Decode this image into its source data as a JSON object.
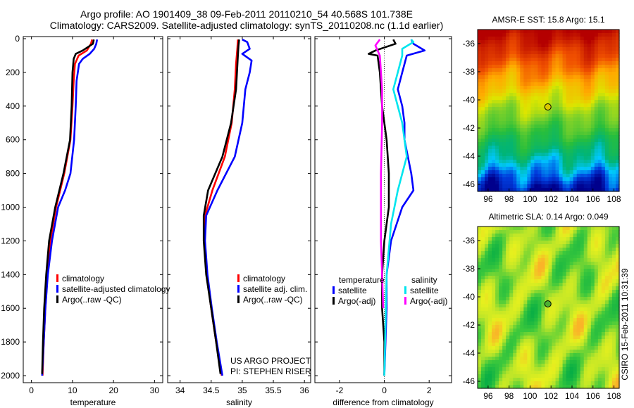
{
  "header": {
    "line1": "Argo profile: AO 1901409_38 09-Feb-2011 20110210_54 40.568S 101.738E",
    "line2": "Climatology: CARS2009. Satellite-adjusted climatology: synTS_20110208.nc (1.1d earlier)"
  },
  "colors": {
    "climatology": "#ff0000",
    "satellite": "#0000ff",
    "argo": "#000000",
    "salinity_satellite": "#00e5ee",
    "salinity_argo": "#ff00ff"
  },
  "chart_data": [
    {
      "type": "line",
      "xlabel": "temperature",
      "xlim": [
        -2,
        32
      ],
      "xticks": [
        0,
        10,
        20,
        30
      ],
      "ylim": [
        2050,
        0
      ],
      "yticks": [
        0,
        200,
        400,
        600,
        800,
        1000,
        1200,
        1400,
        1600,
        1800,
        2000
      ],
      "legend": [
        "climatology",
        "satellite-adjusted climatology",
        "Argo(..raw -QC)"
      ],
      "series": [
        {
          "name": "climatology",
          "color": "#ff0000",
          "points": [
            [
              14.8,
              5
            ],
            [
              14.5,
              30
            ],
            [
              13.5,
              70
            ],
            [
              11.5,
              100
            ],
            [
              10.6,
              150
            ],
            [
              10.3,
              250
            ],
            [
              10.0,
              400
            ],
            [
              9.5,
              600
            ],
            [
              8.0,
              800
            ],
            [
              6.0,
              1000
            ],
            [
              4.6,
              1200
            ],
            [
              3.9,
              1400
            ],
            [
              3.4,
              1600
            ],
            [
              3.0,
              1800
            ],
            [
              2.7,
              2000
            ]
          ]
        },
        {
          "name": "satellite-adjusted climatology",
          "color": "#0000ff",
          "points": [
            [
              16.0,
              5
            ],
            [
              15.8,
              30
            ],
            [
              15.3,
              60
            ],
            [
              14.2,
              90
            ],
            [
              12.5,
              120
            ],
            [
              11.6,
              150
            ],
            [
              11.0,
              250
            ],
            [
              10.8,
              400
            ],
            [
              10.4,
              600
            ],
            [
              9.5,
              800
            ],
            [
              8.2,
              900
            ],
            [
              6.5,
              1000
            ],
            [
              5.0,
              1200
            ],
            [
              4.0,
              1400
            ],
            [
              3.4,
              1600
            ],
            [
              3.0,
              1800
            ],
            [
              2.6,
              2000
            ]
          ]
        },
        {
          "name": "Argo(..raw -QC)",
          "color": "#000000",
          "points": [
            [
              15.2,
              5
            ],
            [
              15.0,
              30
            ],
            [
              12.5,
              70
            ],
            [
              10.8,
              90
            ],
            [
              10.3,
              120
            ],
            [
              10.0,
              200
            ],
            [
              9.8,
              400
            ],
            [
              9.4,
              600
            ],
            [
              7.8,
              800
            ],
            [
              5.8,
              1000
            ],
            [
              4.3,
              1200
            ],
            [
              3.6,
              1400
            ],
            [
              3.1,
              1600
            ],
            [
              2.8,
              1800
            ],
            [
              2.6,
              1990
            ]
          ]
        }
      ]
    },
    {
      "type": "line",
      "xlabel": "salinity",
      "xlim": [
        33.8,
        36.1
      ],
      "xticks": [
        34,
        34.5,
        35,
        35.5,
        36
      ],
      "ylim": [
        2050,
        0
      ],
      "legend": [
        "climatology",
        "satellite adj. clim.",
        "Argo(..raw -QC)"
      ],
      "series": [
        {
          "name": "climatology",
          "color": "#ff0000",
          "points": [
            [
              34.93,
              5
            ],
            [
              34.92,
              60
            ],
            [
              34.9,
              150
            ],
            [
              34.88,
              300
            ],
            [
              34.83,
              500
            ],
            [
              34.72,
              700
            ],
            [
              34.52,
              900
            ],
            [
              34.4,
              1050
            ],
            [
              34.39,
              1200
            ],
            [
              34.43,
              1400
            ],
            [
              34.5,
              1600
            ],
            [
              34.58,
              1800
            ],
            [
              34.67,
              2000
            ]
          ]
        },
        {
          "name": "satellite adj. clim.",
          "color": "#0000ff",
          "points": [
            [
              35.0,
              5
            ],
            [
              35.08,
              20
            ],
            [
              35.12,
              60
            ],
            [
              35.0,
              90
            ],
            [
              35.15,
              130
            ],
            [
              35.12,
              200
            ],
            [
              35.05,
              300
            ],
            [
              35.0,
              500
            ],
            [
              34.88,
              700
            ],
            [
              34.6,
              900
            ],
            [
              34.42,
              1050
            ],
            [
              34.4,
              1200
            ],
            [
              34.44,
              1400
            ],
            [
              34.51,
              1600
            ],
            [
              34.59,
              1800
            ],
            [
              34.68,
              2000
            ]
          ]
        },
        {
          "name": "Argo(..raw -QC)",
          "color": "#000000",
          "points": [
            [
              34.95,
              5
            ],
            [
              34.94,
              40
            ],
            [
              34.93,
              100
            ],
            [
              34.9,
              300
            ],
            [
              34.82,
              500
            ],
            [
              34.68,
              700
            ],
            [
              34.45,
              900
            ],
            [
              34.38,
              1050
            ],
            [
              34.38,
              1200
            ],
            [
              34.42,
              1400
            ],
            [
              34.5,
              1600
            ],
            [
              34.58,
              1800
            ],
            [
              34.65,
              1990
            ]
          ]
        }
      ]
    },
    {
      "type": "line",
      "xlabel": "difference from climatology",
      "xlim": [
        -3.1,
        3.0
      ],
      "xticks": [
        -2,
        0,
        2
      ],
      "ylim": [
        2050,
        0
      ],
      "legend_titles": [
        "temperature",
        "salinity"
      ],
      "legend": [
        "satellite",
        "Argo(-adj)",
        "satellite",
        "Argo(-adj)"
      ],
      "series": [
        {
          "name": "temperature satellite",
          "color": "#0000ff",
          "points": [
            [
              1.2,
              5
            ],
            [
              1.3,
              30
            ],
            [
              1.8,
              70
            ],
            [
              1.0,
              100
            ],
            [
              0.8,
              200
            ],
            [
              0.6,
              300
            ],
            [
              0.8,
              400
            ],
            [
              0.9,
              500
            ],
            [
              0.9,
              600
            ],
            [
              1.2,
              800
            ],
            [
              1.3,
              900
            ],
            [
              0.8,
              1000
            ],
            [
              0.3,
              1200
            ],
            [
              0.1,
              1400
            ],
            [
              0.1,
              1600
            ],
            [
              0.05,
              1800
            ],
            [
              0,
              2000
            ]
          ]
        },
        {
          "name": "temperature Argo(-adj)",
          "color": "#000000",
          "points": [
            [
              0.4,
              5
            ],
            [
              0.5,
              30
            ],
            [
              -0.4,
              70
            ],
            [
              -0.7,
              90
            ],
            [
              -0.3,
              100
            ],
            [
              -0.2,
              200
            ],
            [
              -0.1,
              400
            ],
            [
              0.1,
              600
            ],
            [
              0.2,
              800
            ],
            [
              0.2,
              1000
            ],
            [
              0.0,
              1200
            ],
            [
              -0.1,
              1400
            ],
            [
              -0.1,
              1600
            ],
            [
              0.0,
              1800
            ],
            [
              0.0,
              2000
            ]
          ]
        },
        {
          "name": "salinity satellite",
          "color": "#00e5ee",
          "points": [
            [
              1.2,
              5
            ],
            [
              1.3,
              20
            ],
            [
              0.8,
              60
            ],
            [
              0.8,
              100
            ],
            [
              0.6,
              200
            ],
            [
              0.4,
              300
            ],
            [
              0.8,
              500
            ],
            [
              1.0,
              700
            ],
            [
              0.6,
              900
            ],
            [
              0.3,
              1100
            ],
            [
              0.1,
              1400
            ],
            [
              0.05,
              1700
            ],
            [
              0.0,
              2000
            ]
          ]
        },
        {
          "name": "salinity Argo(-adj)",
          "color": "#ff00ff",
          "points": [
            [
              -0.2,
              5
            ],
            [
              -0.4,
              40
            ],
            [
              -0.2,
              100
            ],
            [
              -0.1,
              300
            ],
            [
              -0.1,
              500
            ],
            [
              -0.15,
              800
            ],
            [
              -0.15,
              1000
            ],
            [
              -0.15,
              1200
            ],
            [
              -0.1,
              1400
            ],
            [
              -0.05,
              1600
            ]
          ]
        }
      ]
    }
  ],
  "maps": [
    {
      "type": "heatmap",
      "title": "AMSR-E SST: 15.8 Argo: 15.1",
      "xlim": [
        95,
        108.5
      ],
      "ylim": [
        -46.5,
        -35
      ],
      "xticks": [
        96,
        98,
        100,
        102,
        104,
        106,
        108
      ],
      "yticks": [
        -36,
        -38,
        -40,
        -42,
        -44,
        -46
      ],
      "marker": [
        101.7,
        -40.5
      ]
    },
    {
      "type": "heatmap",
      "title": "Altimetric SLA: 0.14 Argo: 0.049",
      "xlim": [
        95,
        108.5
      ],
      "ylim": [
        -46.5,
        -35
      ],
      "xticks": [
        96,
        98,
        100,
        102,
        104,
        106,
        108
      ],
      "yticks": [
        -36,
        -38,
        -40,
        -42,
        -44,
        -46
      ],
      "marker": [
        101.7,
        -40.5
      ]
    }
  ],
  "notes": {
    "project": "US ARGO PROJECT",
    "pi": "PI: STEPHEN RISER",
    "stamp": "CSIRO 15-Feb-2011 10:31:39"
  }
}
